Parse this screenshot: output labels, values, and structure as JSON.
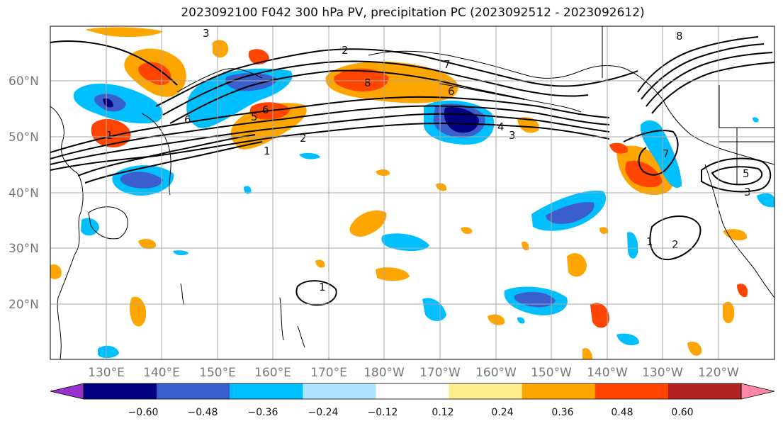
{
  "title": "2023092100 F042 300 hPa PV, precipitation PC (2023092512 - 2023092612)",
  "lat_labels": [
    "60°N",
    "50°N",
    "40°N",
    "30°N",
    "20°N"
  ],
  "lon_labels": [
    "130°E",
    "140°E",
    "150°E",
    "160°E",
    "170°E",
    "180°W",
    "170°W",
    "160°W",
    "150°W",
    "140°W",
    "130°W",
    "120°W"
  ],
  "colorbar": {
    "colors": [
      "#9932cc",
      "#000080",
      "#3a5fcd",
      "#00bfff",
      "#b0e2ff",
      "#ffffff",
      "#ffec8b",
      "#ffa500",
      "#ff4500",
      "#b22222",
      "#ff88aa"
    ],
    "tick_labels": [
      "−0.60",
      "−0.48",
      "−0.36",
      "−0.24",
      "−0.12",
      "0.12",
      "0.24",
      "0.36",
      "0.48",
      "0.60"
    ],
    "levels": [
      -0.6,
      -0.48,
      -0.36,
      -0.24,
      -0.12,
      0.12,
      0.24,
      0.36,
      0.48,
      0.6
    ]
  },
  "contour_labels": [
    "1",
    "2",
    "3",
    "4",
    "5",
    "6",
    "7",
    "8"
  ],
  "colors": {
    "grid": "#a8a8a8",
    "coast": "#000000",
    "contour": "#000000"
  }
}
